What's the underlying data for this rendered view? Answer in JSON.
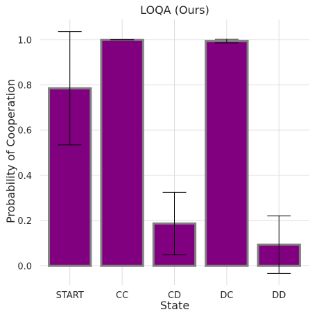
{
  "chart_data": {
    "type": "bar",
    "title": "LOQA (Ours)",
    "xlabel": "State",
    "ylabel": "Probability of Cooperation",
    "categories": [
      "START",
      "CC",
      "CD",
      "DC",
      "DD"
    ],
    "values": [
      0.785,
      1.0,
      0.187,
      0.994,
      0.093
    ],
    "error_low": [
      0.535,
      0.999,
      0.048,
      0.986,
      -0.034
    ],
    "error_high": [
      1.036,
      1.001,
      0.325,
      1.003,
      0.221
    ],
    "ylim": [
      -0.085,
      1.09
    ],
    "yticks": [
      0.0,
      0.2,
      0.4,
      0.6,
      0.8,
      1.0
    ],
    "ytick_labels": [
      "0.0",
      "0.2",
      "0.4",
      "0.6",
      "0.8",
      "1.0"
    ],
    "grid": true,
    "colors": {
      "bar_fill": "#800080",
      "bar_edge": "#808080",
      "grid": "#dcdcdc",
      "error_bar": "#000000"
    }
  }
}
